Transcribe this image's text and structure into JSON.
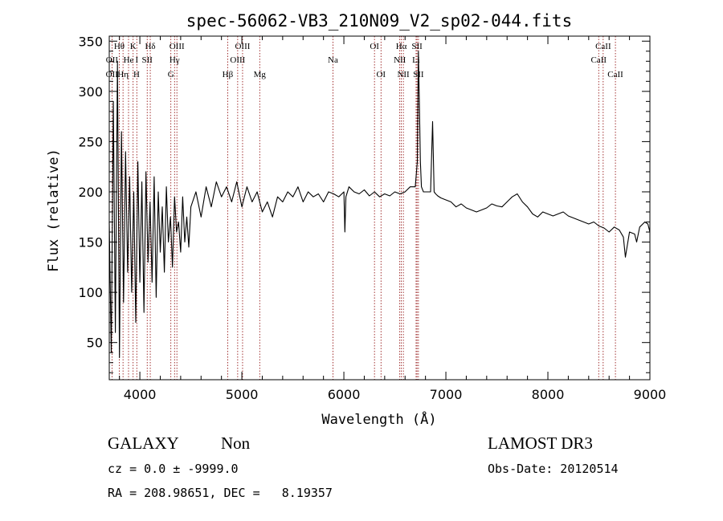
{
  "chart_data": {
    "type": "line",
    "title": "spec-56062-VB3_210N09_V2_sp02-044.fits",
    "xlabel": "Wavelength (Å)",
    "ylabel": "Flux (relative)",
    "xlim": [
      3700,
      9000
    ],
    "ylim": [
      13,
      355
    ],
    "x_ticks": [
      4000,
      5000,
      6000,
      7000,
      8000,
      9000
    ],
    "x_tick_labels": [
      "4000",
      "5000",
      "6000",
      "7000",
      "8000",
      "9000"
    ],
    "y_ticks": [
      50,
      100,
      150,
      200,
      250,
      300,
      350
    ],
    "y_tick_labels": [
      "50",
      "100",
      "150",
      "200",
      "250",
      "300",
      "350"
    ],
    "series": [
      {
        "name": "spectrum",
        "color": "#000000",
        "x": [
          3700,
          3720,
          3740,
          3760,
          3780,
          3800,
          3820,
          3840,
          3860,
          3880,
          3900,
          3920,
          3940,
          3960,
          3980,
          4000,
          4020,
          4040,
          4060,
          4080,
          4100,
          4120,
          4140,
          4160,
          4180,
          4200,
          4220,
          4240,
          4260,
          4280,
          4300,
          4320,
          4340,
          4360,
          4380,
          4400,
          4420,
          4440,
          4460,
          4480,
          4500,
          4550,
          4600,
          4650,
          4700,
          4750,
          4800,
          4850,
          4900,
          4950,
          5000,
          5050,
          5100,
          5150,
          5200,
          5250,
          5300,
          5350,
          5400,
          5450,
          5500,
          5550,
          5600,
          5650,
          5700,
          5750,
          5800,
          5850,
          5900,
          5950,
          6000,
          6010,
          6020,
          6050,
          6100,
          6150,
          6200,
          6250,
          6300,
          6350,
          6400,
          6450,
          6500,
          6550,
          6600,
          6650,
          6700,
          6720,
          6730,
          6740,
          6750,
          6760,
          6780,
          6800,
          6850,
          6870,
          6885,
          6900,
          6920,
          6950,
          7000,
          7050,
          7100,
          7150,
          7200,
          7250,
          7300,
          7350,
          7400,
          7450,
          7500,
          7550,
          7600,
          7650,
          7700,
          7750,
          7800,
          7850,
          7900,
          7950,
          8000,
          8050,
          8100,
          8150,
          8200,
          8250,
          8300,
          8350,
          8400,
          8450,
          8500,
          8550,
          8600,
          8650,
          8700,
          8740,
          8760,
          8800,
          8850,
          8870,
          8900,
          8950,
          8980,
          9000
        ],
        "y": [
          170,
          40,
          290,
          60,
          330,
          35,
          260,
          90,
          240,
          120,
          215,
          100,
          200,
          70,
          230,
          110,
          210,
          80,
          220,
          130,
          190,
          110,
          215,
          95,
          200,
          140,
          185,
          120,
          205,
          150,
          175,
          125,
          195,
          160,
          170,
          140,
          195,
          150,
          175,
          145,
          185,
          200,
          175,
          205,
          185,
          210,
          195,
          205,
          190,
          210,
          185,
          205,
          190,
          200,
          180,
          190,
          175,
          195,
          190,
          200,
          195,
          205,
          190,
          200,
          195,
          198,
          190,
          200,
          198,
          195,
          200,
          160,
          195,
          205,
          200,
          198,
          202,
          196,
          200,
          195,
          198,
          196,
          200,
          198,
          200,
          205,
          205,
          230,
          340,
          290,
          230,
          205,
          200,
          200,
          200,
          270,
          200,
          198,
          196,
          194,
          192,
          190,
          185,
          188,
          184,
          182,
          180,
          182,
          184,
          188,
          186,
          185,
          190,
          195,
          198,
          190,
          185,
          178,
          175,
          180,
          178,
          176,
          178,
          180,
          176,
          174,
          172,
          170,
          168,
          170,
          166,
          164,
          160,
          165,
          162,
          155,
          135,
          160,
          158,
          150,
          165,
          170,
          168,
          160
        ]
      }
    ],
    "line_markers": [
      {
        "label": "Hθ",
        "x": 3798,
        "row": 1
      },
      {
        "label": "K",
        "x": 3934,
        "row": 1
      },
      {
        "label": "Hδ",
        "x": 4102,
        "row": 1
      },
      {
        "label": "OIII",
        "x": 4363,
        "row": 1
      },
      {
        "label": "OIII",
        "x": 5007,
        "row": 1
      },
      {
        "label": "OI",
        "x": 6300,
        "row": 1
      },
      {
        "label": "Hα",
        "x": 6563,
        "row": 1
      },
      {
        "label": "SII",
        "x": 6717,
        "row": 1
      },
      {
        "label": "CaII",
        "x": 8542,
        "row": 1
      },
      {
        "label": "OII",
        "x": 3727,
        "row": 2
      },
      {
        "label": "He",
        "x": 3889,
        "row": 2
      },
      {
        "label": "I",
        "x": 3970,
        "row": 2
      },
      {
        "label": "SII",
        "x": 4072,
        "row": 2
      },
      {
        "label": "Hγ",
        "x": 4340,
        "row": 2
      },
      {
        "label": "OIII",
        "x": 4959,
        "row": 2
      },
      {
        "label": "Na",
        "x": 5893,
        "row": 2
      },
      {
        "label": "NII",
        "x": 6548,
        "row": 2
      },
      {
        "label": "Li",
        "x": 6708,
        "row": 2
      },
      {
        "label": "CaII",
        "x": 8498,
        "row": 2
      },
      {
        "label": "OII",
        "x": 3726,
        "row": 3
      },
      {
        "label": "Hη",
        "x": 3835,
        "row": 3
      },
      {
        "label": "H",
        "x": 3968,
        "row": 3
      },
      {
        "label": "G",
        "x": 4304,
        "row": 3
      },
      {
        "label": "Hβ",
        "x": 4861,
        "row": 3
      },
      {
        "label": "Mg",
        "x": 5175,
        "row": 3
      },
      {
        "label": "OI",
        "x": 6364,
        "row": 3
      },
      {
        "label": "NII",
        "x": 6583,
        "row": 3
      },
      {
        "label": "SII",
        "x": 6731,
        "row": 3
      },
      {
        "label": "CaII",
        "x": 8662,
        "row": 3
      }
    ],
    "line_positions": [
      3727,
      3798,
      3835,
      3889,
      3934,
      3970,
      4072,
      4102,
      4304,
      4340,
      4363,
      4861,
      4959,
      5007,
      5175,
      5893,
      6300,
      6364,
      6548,
      6563,
      6583,
      6708,
      6717,
      6731,
      8498,
      8542,
      8662
    ],
    "line_color": "#8b0000"
  },
  "footer": {
    "object_class": "GALAXY",
    "subclass": "Non",
    "survey": "LAMOST DR3",
    "redshift": "cz = 0.0 ± -9999.0",
    "obs_date": "Obs-Date: 20120514",
    "coords": "RA = 208.98651, DEC =   8.19357"
  }
}
